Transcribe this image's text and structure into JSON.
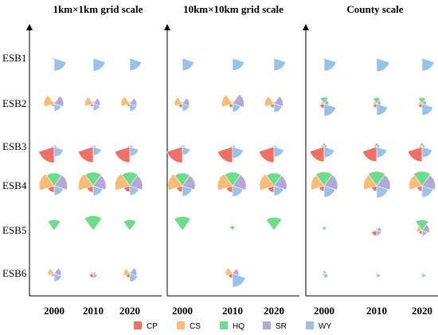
{
  "chart_data": {
    "type": "rose",
    "panels": [
      {
        "title": "1km×1km grid scale"
      },
      {
        "title": "10km×10km grid scale"
      },
      {
        "title": "County scale"
      }
    ],
    "rows": [
      "ESB1",
      "ESB2",
      "ESB3",
      "ESB4",
      "ESB5",
      "ESB6"
    ],
    "years": [
      "2000",
      "2010",
      "2020"
    ],
    "legend": {
      "placement": "bottom",
      "items": [
        {
          "name": "CP",
          "color": "#ee7067"
        },
        {
          "name": "CS",
          "color": "#f9bc79"
        },
        {
          "name": "HQ",
          "color": "#6fdc8c"
        },
        {
          "name": "SR",
          "color": "#b6a7d5"
        },
        {
          "name": "WY",
          "color": "#9cc1e6"
        }
      ]
    },
    "series_order": [
      "CP",
      "CS",
      "HQ",
      "SR",
      "WY"
    ],
    "value_range": [
      0,
      1
    ],
    "values": [
      [
        [
          [
            0.08,
            0.03,
            0.02,
            0.02,
            0.62
          ],
          [
            0.05,
            0.02,
            0.01,
            0.02,
            0.62
          ],
          [
            0.06,
            0.03,
            0.02,
            0.03,
            0.6
          ]
        ],
        [
          [
            0.06,
            0.03,
            0.01,
            0.03,
            0.6
          ],
          [
            0.05,
            0.03,
            0.01,
            0.03,
            0.6
          ],
          [
            0.05,
            0.03,
            0.01,
            0.03,
            0.6
          ]
        ],
        [
          [
            0.08,
            0.03,
            0.02,
            0.03,
            0.62
          ],
          [
            0.07,
            0.03,
            0.02,
            0.03,
            0.65
          ],
          [
            0.07,
            0.03,
            0.02,
            0.03,
            0.62
          ]
        ]
      ],
      [
        [
          [
            0.14,
            0.5,
            0.1,
            0.46,
            0.36
          ],
          [
            0.15,
            0.4,
            0.1,
            0.33,
            0.34
          ],
          [
            0.15,
            0.42,
            0.1,
            0.34,
            0.36
          ]
        ],
        [
          [
            0.2,
            0.38,
            0.1,
            0.34,
            0.36
          ],
          [
            0.2,
            0.52,
            0.1,
            0.56,
            0.4
          ],
          [
            0.2,
            0.44,
            0.1,
            0.44,
            0.42
          ]
        ],
        [
          [
            0.22,
            0.16,
            0.32,
            0.22,
            0.6
          ],
          [
            0.2,
            0.16,
            0.3,
            0.2,
            0.56
          ],
          [
            0.2,
            0.16,
            0.3,
            0.2,
            0.56
          ]
        ]
      ],
      [
        [
          [
            0.78,
            0.1,
            0.08,
            0.12,
            0.48
          ],
          [
            0.76,
            0.1,
            0.08,
            0.12,
            0.42
          ],
          [
            0.76,
            0.1,
            0.08,
            0.12,
            0.45
          ]
        ],
        [
          [
            0.78,
            0.1,
            0.08,
            0.12,
            0.4
          ],
          [
            0.76,
            0.1,
            0.08,
            0.12,
            0.55
          ],
          [
            0.76,
            0.1,
            0.08,
            0.12,
            0.5
          ]
        ],
        [
          [
            0.72,
            0.14,
            0.16,
            0.14,
            0.52
          ],
          [
            0.72,
            0.14,
            0.16,
            0.14,
            0.52
          ],
          [
            0.72,
            0.14,
            0.16,
            0.14,
            0.52
          ]
        ]
      ],
      [
        [
          [
            0.32,
            0.72,
            0.62,
            0.64,
            0.46
          ],
          [
            0.32,
            0.72,
            0.66,
            0.62,
            0.48
          ],
          [
            0.3,
            0.72,
            0.66,
            0.62,
            0.46
          ]
        ],
        [
          [
            0.3,
            0.7,
            0.62,
            0.62,
            0.5
          ],
          [
            0.32,
            0.72,
            0.66,
            0.66,
            0.52
          ],
          [
            0.32,
            0.7,
            0.62,
            0.62,
            0.48
          ]
        ],
        [
          [
            0.26,
            0.64,
            0.68,
            0.66,
            0.55
          ],
          [
            0.26,
            0.64,
            0.7,
            0.66,
            0.58
          ],
          [
            0.26,
            0.64,
            0.7,
            0.64,
            0.55
          ]
        ]
      ],
      [
        [
          [
            0.02,
            0.02,
            0.52,
            0.02,
            0.02
          ],
          [
            0.02,
            0.02,
            0.72,
            0.02,
            0.02
          ],
          [
            0.02,
            0.02,
            0.52,
            0.02,
            0.02
          ]
        ],
        [
          [
            0.02,
            0.02,
            0.68,
            0.02,
            0.02
          ],
          [
            0.02,
            0.02,
            0.22,
            0.02,
            0.02
          ],
          [
            0.02,
            0.02,
            0.64,
            0.02,
            0.02
          ]
        ],
        [
          [
            0.05,
            0.04,
            0.18,
            0.04,
            0.04
          ],
          [
            0.26,
            0.08,
            0.1,
            0.22,
            0.24
          ],
          [
            0.18,
            0.26,
            0.52,
            0.36,
            0.26
          ]
        ]
      ],
      [
        [
          [
            0.14,
            0.3,
            0.06,
            0.34,
            0.38
          ],
          [
            0.2,
            0.12,
            0.06,
            0.12,
            0.22
          ],
          [
            0.2,
            0.3,
            0.08,
            0.34,
            0.4
          ]
        ],
        [
          [
            0.02,
            0.04,
            0.02,
            0.04,
            0.04
          ],
          [
            0.22,
            0.34,
            0.08,
            0.3,
            0.66
          ],
          [
            0.02,
            0.04,
            0.02,
            0.04,
            0.04
          ]
        ],
        [
          [
            0.1,
            0.08,
            0.14,
            0.12,
            0.22
          ],
          [
            0.08,
            0.06,
            0.06,
            0.08,
            0.2
          ],
          [
            0.08,
            0.06,
            0.06,
            0.08,
            0.2
          ]
        ]
      ]
    ]
  }
}
